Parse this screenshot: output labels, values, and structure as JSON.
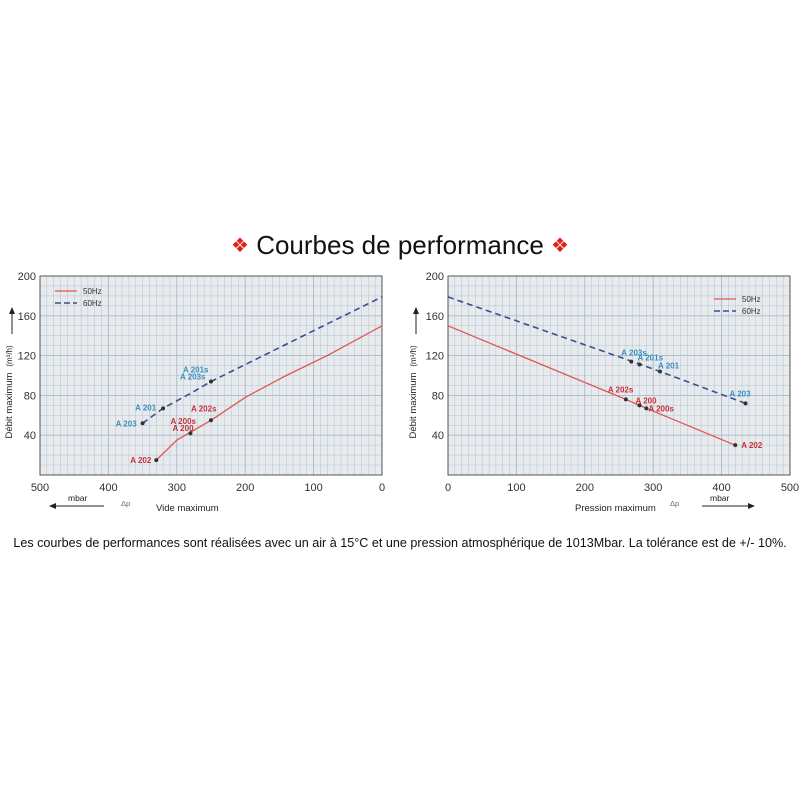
{
  "title": "Courbes de performance",
  "title_ornament": "❖",
  "caption": "Les courbes de performances sont réalisées avec un air à 15°C et une pression atmosphérique de 1013Mbar. La tolérance est de +/- 10%.",
  "colors": {
    "series_50hz": "#e05555",
    "series_60hz": "#3b4f8f",
    "label_50hz": "#c8303a",
    "label_60hz": "#3a8fc0",
    "grid": "#a8b8c8",
    "panel_bg": "#e8ebee",
    "ornament": "#e0221c"
  },
  "chart_data": [
    {
      "type": "line",
      "xlabel": "Vide maximum",
      "ylabel": "Débit maximum",
      "yunit": "(m³/h)",
      "xunit": "mbar",
      "xsymbol": "Δp",
      "xlim": [
        500,
        0
      ],
      "ylim": [
        0,
        200
      ],
      "x_reversed": true,
      "xticks": [
        500,
        400,
        300,
        200,
        100,
        0
      ],
      "yticks": [
        40,
        80,
        120,
        160,
        200
      ],
      "grid": true,
      "legend_position": "top-left",
      "series": [
        {
          "name": "50Hz",
          "style": "solid",
          "x": [
            330,
            300,
            250,
            200,
            140,
            80,
            0
          ],
          "y": [
            15,
            35,
            55,
            78,
            100,
            120,
            150
          ]
        },
        {
          "name": "60Hz",
          "style": "dashed",
          "x": [
            350,
            320,
            280,
            250,
            200,
            100,
            0
          ],
          "y": [
            52,
            67,
            82,
            94,
            111,
            145,
            179
          ]
        }
      ],
      "points": [
        {
          "label": "A 202",
          "series": "50Hz",
          "x": 330,
          "y": 15
        },
        {
          "label": "A 200",
          "series": "50Hz",
          "x": 280,
          "y": 42
        },
        {
          "label": "A 200s",
          "series": "50Hz",
          "x": 280,
          "y": 42
        },
        {
          "label": "A 202s",
          "series": "50Hz",
          "x": 250,
          "y": 55
        },
        {
          "label": "A 203",
          "series": "60Hz",
          "x": 350,
          "y": 52
        },
        {
          "label": "A 201",
          "series": "60Hz",
          "x": 320,
          "y": 67
        },
        {
          "label": "A 203s",
          "series": "60Hz",
          "x": 250,
          "y": 94
        },
        {
          "label": "A 201s",
          "series": "60Hz",
          "x": 250,
          "y": 94
        }
      ]
    },
    {
      "type": "line",
      "xlabel": "Pression maximum",
      "ylabel": "Débit maximum",
      "yunit": "(m³/h)",
      "xunit": "mbar",
      "xsymbol": "Δp",
      "xlim": [
        0,
        500
      ],
      "ylim": [
        0,
        200
      ],
      "x_reversed": false,
      "xticks": [
        0,
        100,
        200,
        300,
        400,
        500
      ],
      "yticks": [
        40,
        80,
        120,
        160,
        200
      ],
      "grid": true,
      "legend_position": "top-right",
      "series": [
        {
          "name": "50Hz",
          "style": "solid",
          "x": [
            0,
            260,
            290,
            420
          ],
          "y": [
            150,
            76,
            67,
            30
          ]
        },
        {
          "name": "60Hz",
          "style": "dashed",
          "x": [
            0,
            270,
            310,
            435
          ],
          "y": [
            179,
            114,
            104,
            72
          ]
        }
      ],
      "points": [
        {
          "label": "A 202s",
          "series": "50Hz",
          "x": 260,
          "y": 76
        },
        {
          "label": "A 200",
          "series": "50Hz",
          "x": 280,
          "y": 70
        },
        {
          "label": "A 200s",
          "series": "50Hz",
          "x": 290,
          "y": 67
        },
        {
          "label": "A 202",
          "series": "50Hz",
          "x": 420,
          "y": 30
        },
        {
          "label": "A 203s",
          "series": "60Hz",
          "x": 268,
          "y": 114
        },
        {
          "label": "A 201s",
          "series": "60Hz",
          "x": 280,
          "y": 111
        },
        {
          "label": "A 201",
          "series": "60Hz",
          "x": 310,
          "y": 104
        },
        {
          "label": "A 203",
          "series": "60Hz",
          "x": 435,
          "y": 72
        }
      ]
    }
  ]
}
